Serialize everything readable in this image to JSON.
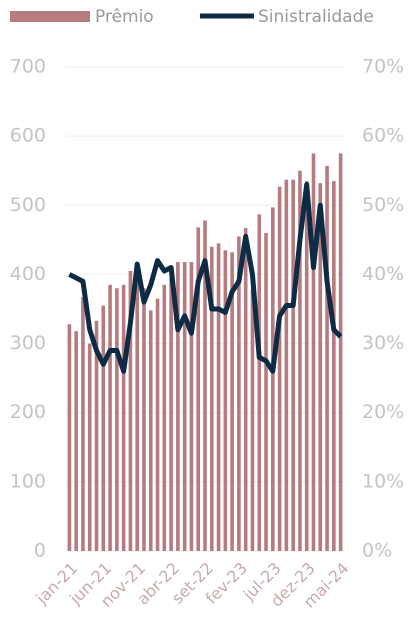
{
  "chart_data": {
    "type": "bar_line",
    "categories": [
      "jan-21",
      null,
      null,
      null,
      null,
      "jun-21",
      null,
      null,
      null,
      null,
      "nov-21",
      null,
      null,
      null,
      null,
      "abr-22",
      null,
      null,
      null,
      null,
      "set-22",
      null,
      null,
      null,
      null,
      "fev-23",
      null,
      null,
      null,
      null,
      "jul-23",
      null,
      null,
      null,
      null,
      "dez-23",
      null,
      null,
      null,
      null,
      "mai-24"
    ],
    "series": [
      {
        "name": "Prêmio",
        "type": "bar",
        "color": "#b57b7e",
        "values": [
          328,
          318,
          367,
          300,
          333,
          355,
          385,
          380,
          385,
          405,
          395,
          380,
          348,
          365,
          385,
          395,
          418,
          418,
          418,
          468,
          478,
          440,
          445,
          435,
          432,
          455,
          467,
          378,
          487,
          460,
          497,
          527,
          537,
          537,
          550,
          535,
          575,
          532,
          557,
          535,
          575
        ]
      },
      {
        "name": "Sinistralidade",
        "type": "line",
        "axis": "y2",
        "color": "#0d2b45",
        "values": [
          40,
          39.5,
          39,
          32,
          29,
          27,
          29,
          29,
          26,
          33,
          41.5,
          36,
          38.5,
          42,
          40.5,
          41,
          32,
          34,
          31.5,
          39,
          42,
          35,
          35,
          34.5,
          37.5,
          39,
          45.5,
          40,
          28,
          27.5,
          26,
          34,
          35.5,
          35.5,
          45,
          53,
          41,
          50,
          39,
          32,
          31
        ]
      }
    ],
    "ylim": [
      0,
      700
    ],
    "yticks": [
      0,
      100,
      200,
      300,
      400,
      500,
      600,
      700
    ],
    "y2lim": [
      0,
      70
    ],
    "y2ticks": [
      {
        "value": 0,
        "label": "0%"
      },
      {
        "value": 10,
        "label": "10%"
      },
      {
        "value": 20,
        "label": "20%"
      },
      {
        "value": 30,
        "label": "30%"
      },
      {
        "value": 40,
        "label": "40%"
      },
      {
        "value": 50,
        "label": "50%"
      },
      {
        "value": 60,
        "label": "60%"
      },
      {
        "value": 70,
        "label": "70%"
      }
    ],
    "grid": true,
    "legend": "top"
  }
}
